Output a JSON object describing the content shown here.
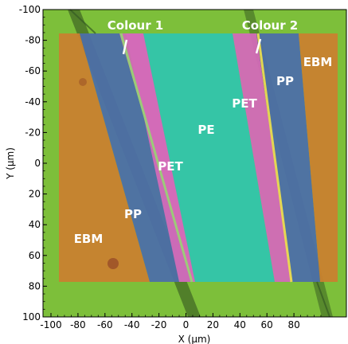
{
  "chart_data": {
    "type": "image-overlay",
    "x_axis": {
      "label": "X (µm)",
      "range": [
        -100,
        100
      ],
      "ticks": [
        -100,
        -80,
        -60,
        -40,
        -20,
        0,
        20,
        40,
        60,
        80
      ],
      "tick_labels": [
        "-100",
        "-80",
        "-60",
        "-40",
        "-20",
        "0",
        "20",
        "40",
        "60",
        "80"
      ]
    },
    "y_axis": {
      "label": "Y (µm)",
      "range": [
        -100,
        100
      ],
      "ticks": [
        -100,
        -80,
        -60,
        -40,
        -20,
        0,
        20,
        40,
        60,
        80,
        100
      ],
      "tick_labels": [
        "-100",
        "-80",
        "-60",
        "-40",
        "-20",
        "0",
        "20",
        "40",
        "60",
        "80",
        "100"
      ]
    },
    "colors": {
      "background_green": "#7dbf3a",
      "EBM": "#c9812f",
      "PP": "#4d6fa8",
      "PET": "#d36ab8",
      "PE": "#2fc6b0",
      "label_text": "#ffffff",
      "axis_text": "#000000"
    },
    "layers": [
      {
        "label": "EBM",
        "side": "left"
      },
      {
        "label": "PP",
        "side": "left"
      },
      {
        "label": "PET",
        "side": "left"
      },
      {
        "label": "PE",
        "side": "center"
      },
      {
        "label": "PET",
        "side": "right"
      },
      {
        "label": "PP",
        "side": "right"
      },
      {
        "label": "EBM",
        "side": "right"
      }
    ],
    "annotations": [
      {
        "text": "Colour 1"
      },
      {
        "text": "Colour 2"
      }
    ]
  }
}
